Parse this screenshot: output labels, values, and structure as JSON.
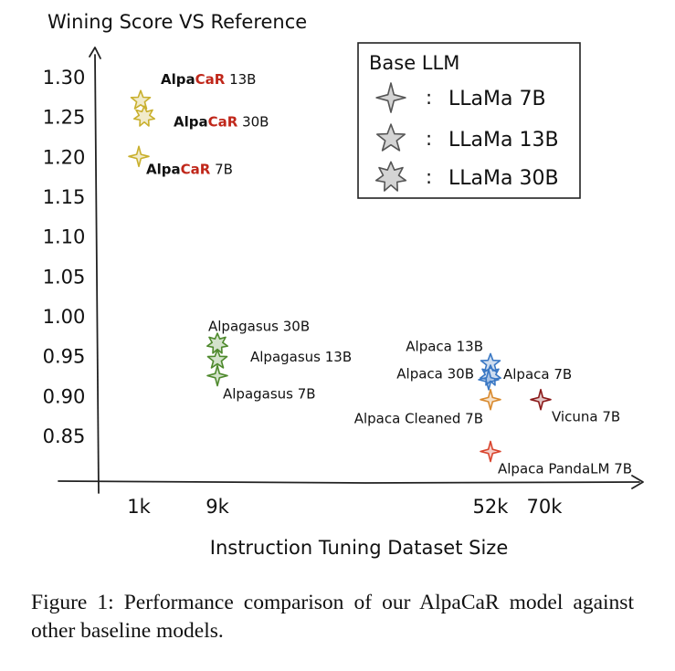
{
  "chart_data": {
    "type": "scatter",
    "title": "",
    "ylabel": "Wining Score VS Reference",
    "xlabel": "Instruction Tuning Dataset Size",
    "x_ticks": [
      "1k",
      "9k",
      "52k",
      "70k"
    ],
    "y_ticks": [
      "1.30",
      "1.25",
      "1.20",
      "1.15",
      "1.10",
      "1.05",
      "1.00",
      "0.95",
      "0.90",
      "0.85"
    ],
    "ylim": [
      0.81,
      1.31
    ],
    "legend": {
      "title": "Base LLM",
      "placement": "top-right",
      "separator": ":",
      "entries": [
        {
          "label": "LLaMa 7B",
          "marker": "four-point-star"
        },
        {
          "label": "LLaMa 13B",
          "marker": "five-point-star"
        },
        {
          "label": "LLaMa 30B",
          "marker": "seven-point-star"
        }
      ]
    },
    "points": [
      {
        "name_a": "Alpa",
        "name_b": "CaR",
        "name_c": " 13B",
        "x": "1k",
        "y": 1.27,
        "marker": "five-point-star",
        "color": "#c9b02e"
      },
      {
        "name_a": "Alpa",
        "name_b": "CaR",
        "name_c": " 30B",
        "x": "1k",
        "y": 1.25,
        "marker": "seven-point-star",
        "color": "#c9b02e"
      },
      {
        "name_a": "Alpa",
        "name_b": "CaR",
        "name_c": " 7B",
        "x": "1k",
        "y": 1.2,
        "marker": "four-point-star",
        "color": "#c9b02e"
      },
      {
        "name": "Alpagasus 30B",
        "x": "9k",
        "y": 0.965,
        "marker": "seven-point-star",
        "color": "#4f8a2e"
      },
      {
        "name": "Alpagasus 13B",
        "x": "9k",
        "y": 0.945,
        "marker": "five-point-star",
        "color": "#4f8a2e"
      },
      {
        "name": "Alpagasus 7B",
        "x": "9k",
        "y": 0.925,
        "marker": "four-point-star",
        "color": "#4f8a2e"
      },
      {
        "name": "Alpaca 13B",
        "x": "52k",
        "y": 0.94,
        "marker": "five-point-star",
        "color": "#3a78c4"
      },
      {
        "name": "Alpaca 30B",
        "x": "52k",
        "y": 0.925,
        "marker": "seven-point-star",
        "color": "#3a78c4"
      },
      {
        "name": "Alpaca 7B",
        "x": "52k",
        "y": 0.92,
        "marker": "four-point-star",
        "color": "#3a78c4"
      },
      {
        "name": "Alpaca Cleaned 7B",
        "x": "52k",
        "y": 0.895,
        "marker": "four-point-star",
        "color": "#d98a2e"
      },
      {
        "name": "Alpaca PandaLM 7B",
        "x": "52k",
        "y": 0.83,
        "marker": "four-point-star",
        "color": "#d9452e"
      },
      {
        "name": "Vicuna 7B",
        "x": "70k",
        "y": 0.895,
        "marker": "four-point-star",
        "color": "#8b1a1a"
      }
    ],
    "highlight_color": "#c0271a"
  },
  "caption": "Figure 1: Performance comparison of our AlpaCaR model against other baseline models."
}
